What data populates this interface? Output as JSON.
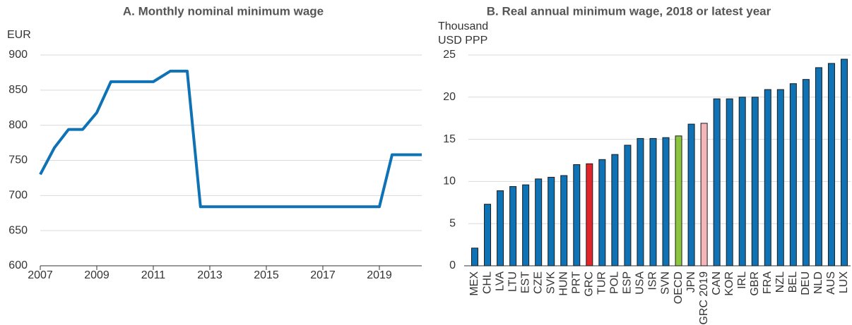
{
  "chart_data": [
    {
      "type": "line",
      "title": "A. Monthly nominal minimum wage",
      "y_label": "EUR",
      "x": [
        2007,
        2007.5,
        2008,
        2008.5,
        2009,
        2009.5,
        2011,
        2011.6,
        2012.2,
        2012.67,
        2019,
        2019.45,
        2020.5
      ],
      "values": [
        730,
        768,
        794,
        794,
        818,
        862,
        862,
        877,
        877,
        684,
        684,
        758,
        758
      ],
      "color": "#0e72b5",
      "xlim": [
        2007,
        2020.5
      ],
      "xticks": [
        2007,
        2009,
        2011,
        2013,
        2015,
        2017,
        2019
      ],
      "ylim": [
        600,
        900
      ],
      "yticks": [
        600,
        650,
        700,
        750,
        800,
        850,
        900
      ],
      "grid": true
    },
    {
      "type": "bar",
      "title": "B. Real annual minimum wage, 2018 or latest year",
      "y_label": "Thousand USD PPP",
      "categories": [
        "MEX",
        "CHL",
        "LVA",
        "LTU",
        "EST",
        "CZE",
        "SVK",
        "HUN",
        "PRT",
        "GRC",
        "TUR",
        "POL",
        "ESP",
        "USA",
        "ISR",
        "SVN",
        "OECD",
        "JPN",
        "GRC 2019",
        "CAN",
        "KOR",
        "IRL",
        "GBR",
        "FRA",
        "NZL",
        "BEL",
        "DEU",
        "NLD",
        "AUS",
        "LUX"
      ],
      "values": [
        2.1,
        7.3,
        8.9,
        9.4,
        9.6,
        10.3,
        10.5,
        10.7,
        12.0,
        12.1,
        12.6,
        13.2,
        14.3,
        15.1,
        15.1,
        15.2,
        15.4,
        16.8,
        16.9,
        19.8,
        19.8,
        20.0,
        20.0,
        20.9,
        20.9,
        21.6,
        22.1,
        23.5,
        24.0,
        24.5
      ],
      "color": "#0e72b5",
      "colors": {
        "GRC": "#e0262b",
        "OECD": "#8cc63f",
        "GRC 2019": "#f4b6b8"
      },
      "ylim": [
        0,
        25
      ],
      "yticks": [
        0,
        5,
        10,
        15,
        20,
        25
      ],
      "grid": true
    }
  ]
}
